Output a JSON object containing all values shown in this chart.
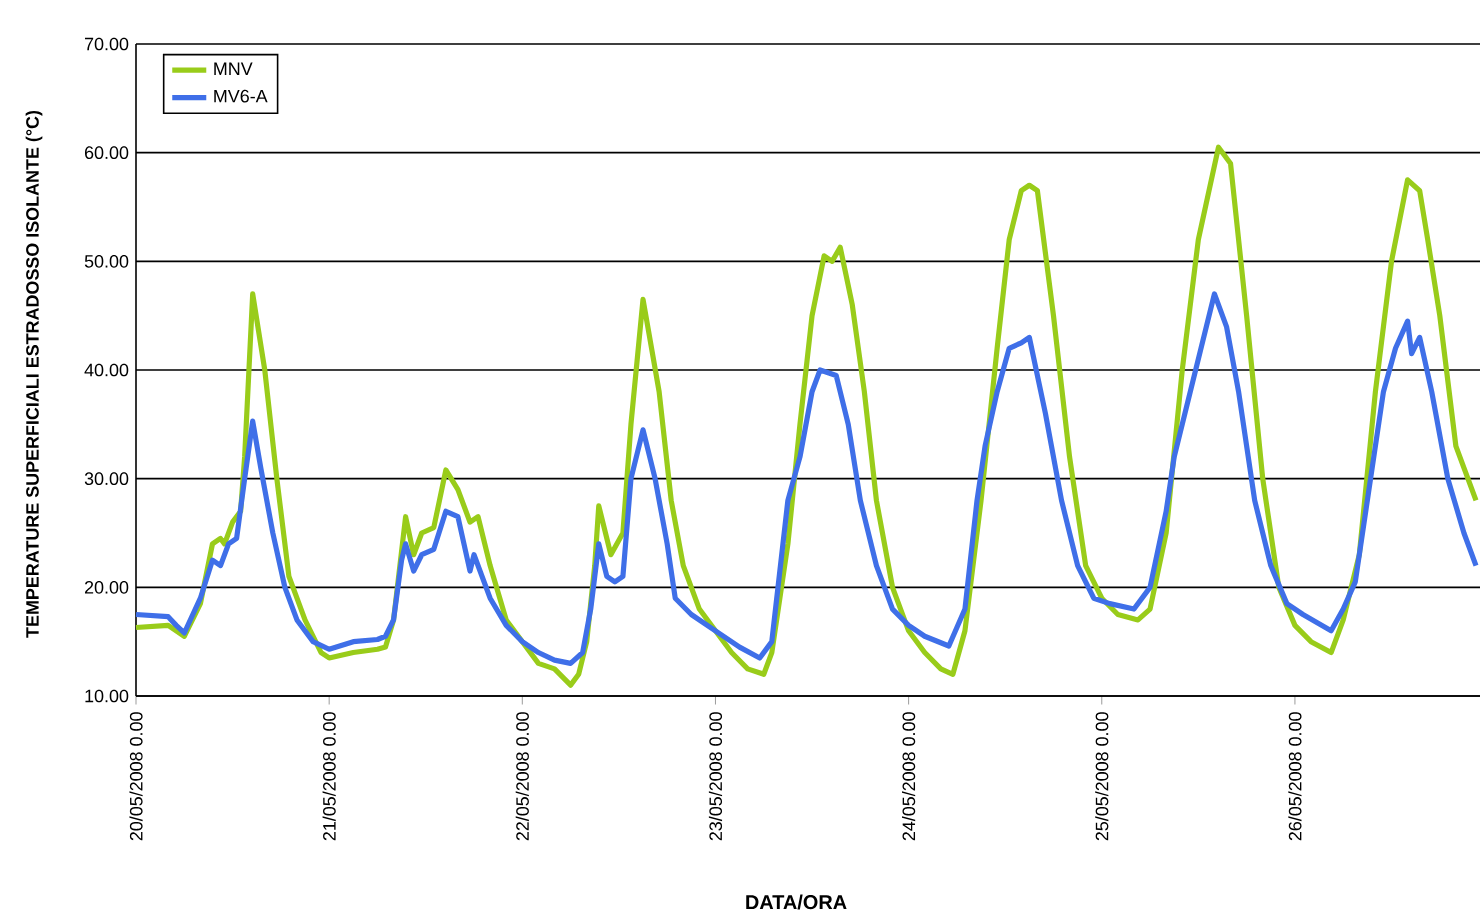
{
  "chart_data": {
    "type": "line",
    "xlabel": "DATA/ORA",
    "ylabel": "TEMPERATURE SUPERFICIALI ESTRADOSSO ISOLANTE (°C)",
    "xlim": [
      "2008-05-20T00:00",
      "2008-05-26T23:00"
    ],
    "xticks": [
      {
        "value": "2008-05-20T00:00",
        "label": "20/05/2008 0.00"
      },
      {
        "value": "2008-05-21T00:00",
        "label": "21/05/2008 0.00"
      },
      {
        "value": "2008-05-22T00:00",
        "label": "22/05/2008 0.00"
      },
      {
        "value": "2008-05-23T00:00",
        "label": "23/05/2008 0.00"
      },
      {
        "value": "2008-05-24T00:00",
        "label": "24/05/2008 0.00"
      },
      {
        "value": "2008-05-25T00:00",
        "label": "25/05/2008 0.00"
      },
      {
        "value": "2008-05-26T00:00",
        "label": "26/05/2008 0.00"
      }
    ],
    "ylim": [
      10,
      70
    ],
    "yticks": [
      {
        "value": 10,
        "label": "10.00"
      },
      {
        "value": 20,
        "label": "20.00"
      },
      {
        "value": 30,
        "label": "30.00"
      },
      {
        "value": 40,
        "label": "40.00"
      },
      {
        "value": 50,
        "label": "50.00"
      },
      {
        "value": 60,
        "label": "60.00"
      },
      {
        "value": 70,
        "label": "70.00"
      }
    ],
    "grid": "y",
    "legend": "top left",
    "marker": "none",
    "line_style": "solid",
    "series": [
      {
        "name": "MNV",
        "color": "#99cc1a",
        "x": [
          "2008-05-20T00:00",
          "2008-05-20T04:00",
          "2008-05-20T05:00",
          "2008-05-20T06:00",
          "2008-05-20T08:00",
          "2008-05-20T09:30",
          "2008-05-20T10:30",
          "2008-05-20T11:00",
          "2008-05-20T12:00",
          "2008-05-20T13:00",
          "2008-05-20T13:30",
          "2008-05-20T14:30",
          "2008-05-20T16:00",
          "2008-05-20T17:30",
          "2008-05-20T19:00",
          "2008-05-20T21:00",
          "2008-05-20T23:00",
          "2008-05-21T00:00",
          "2008-05-21T03:00",
          "2008-05-21T06:00",
          "2008-05-21T07:00",
          "2008-05-21T08:00",
          "2008-05-21T09:30",
          "2008-05-21T10:30",
          "2008-05-21T11:30",
          "2008-05-21T13:00",
          "2008-05-21T14:30",
          "2008-05-21T16:00",
          "2008-05-21T17:30",
          "2008-05-21T18:30",
          "2008-05-21T20:00",
          "2008-05-21T22:00",
          "2008-05-22T00:00",
          "2008-05-22T02:00",
          "2008-05-22T04:00",
          "2008-05-22T06:00",
          "2008-05-22T07:00",
          "2008-05-22T08:00",
          "2008-05-22T09:00",
          "2008-05-22T09:30",
          "2008-05-22T11:00",
          "2008-05-22T12:30",
          "2008-05-22T13:30",
          "2008-05-22T15:00",
          "2008-05-22T17:00",
          "2008-05-22T18:30",
          "2008-05-22T20:00",
          "2008-05-22T22:00",
          "2008-05-23T00:00",
          "2008-05-23T02:00",
          "2008-05-23T04:00",
          "2008-05-23T06:00",
          "2008-05-23T07:00",
          "2008-05-23T09:00",
          "2008-05-23T10:30",
          "2008-05-23T12:00",
          "2008-05-23T13:30",
          "2008-05-23T14:30",
          "2008-05-23T15:30",
          "2008-05-23T17:00",
          "2008-05-23T18:30",
          "2008-05-23T20:00",
          "2008-05-23T22:00",
          "2008-05-24T00:00",
          "2008-05-24T02:00",
          "2008-05-24T04:00",
          "2008-05-24T05:30",
          "2008-05-24T07:00",
          "2008-05-24T09:00",
          "2008-05-24T11:00",
          "2008-05-24T12:30",
          "2008-05-24T14:00",
          "2008-05-24T15:00",
          "2008-05-24T16:00",
          "2008-05-24T18:00",
          "2008-05-24T20:00",
          "2008-05-24T22:00",
          "2008-05-25T00:00",
          "2008-05-25T02:00",
          "2008-05-25T04:30",
          "2008-05-25T06:00",
          "2008-05-25T08:00",
          "2008-05-25T10:00",
          "2008-05-25T12:00",
          "2008-05-25T14:30",
          "2008-05-25T16:00",
          "2008-05-25T18:00",
          "2008-05-25T20:00",
          "2008-05-25T22:00",
          "2008-05-26T00:00",
          "2008-05-26T02:00",
          "2008-05-26T04:30",
          "2008-05-26T06:00",
          "2008-05-26T08:00",
          "2008-05-26T10:00",
          "2008-05-26T12:00",
          "2008-05-26T14:00",
          "2008-05-26T15:30",
          "2008-05-26T16:30",
          "2008-05-26T18:00",
          "2008-05-26T20:00",
          "2008-05-26T22:30"
        ],
        "values": [
          16.3,
          16.5,
          16.0,
          15.5,
          18.5,
          24.0,
          24.5,
          24,
          26,
          27,
          32,
          47,
          40,
          30,
          21,
          17,
          14,
          13.5,
          14,
          14.3,
          14.5,
          17,
          26.5,
          23,
          25,
          25.5,
          30.8,
          29,
          26,
          26.5,
          22,
          17,
          15,
          13,
          12.5,
          11,
          12,
          15,
          22,
          27.5,
          23,
          25,
          35,
          46.5,
          38,
          28,
          22,
          18,
          16,
          14,
          12.5,
          12,
          14,
          24,
          35,
          45,
          50.5,
          50,
          51.3,
          46,
          38,
          28,
          20,
          16,
          14,
          12.5,
          12,
          16,
          28,
          42,
          52,
          56.5,
          57,
          56.5,
          45,
          32,
          22,
          19,
          17.5,
          17,
          18,
          25,
          40,
          52,
          60.5,
          59,
          45,
          30,
          20,
          16.5,
          15,
          14,
          17,
          23,
          38,
          50,
          57.5,
          56.5,
          52,
          45,
          33,
          28
        ]
      },
      {
        "name": "MV6-A",
        "color": "#3f6fe8",
        "x": [
          "2008-05-20T00:00",
          "2008-05-20T04:00",
          "2008-05-20T05:00",
          "2008-05-20T06:00",
          "2008-05-20T08:00",
          "2008-05-20T09:30",
          "2008-05-20T10:30",
          "2008-05-20T11:30",
          "2008-05-20T12:30",
          "2008-05-20T13:30",
          "2008-05-20T14:30",
          "2008-05-20T15:30",
          "2008-05-20T17:00",
          "2008-05-20T18:30",
          "2008-05-20T20:00",
          "2008-05-20T22:00",
          "2008-05-21T00:00",
          "2008-05-21T03:00",
          "2008-05-21T06:00",
          "2008-05-21T07:00",
          "2008-05-21T08:00",
          "2008-05-21T09:00",
          "2008-05-21T09:30",
          "2008-05-21T10:30",
          "2008-05-21T11:30",
          "2008-05-21T13:00",
          "2008-05-21T14:30",
          "2008-05-21T16:00",
          "2008-05-21T17:30",
          "2008-05-21T18:00",
          "2008-05-21T20:00",
          "2008-05-21T22:00",
          "2008-05-22T00:00",
          "2008-05-22T02:00",
          "2008-05-22T04:00",
          "2008-05-22T06:00",
          "2008-05-22T07:30",
          "2008-05-22T08:30",
          "2008-05-22T09:30",
          "2008-05-22T10:30",
          "2008-05-22T11:30",
          "2008-05-22T12:30",
          "2008-05-22T13:30",
          "2008-05-22T15:00",
          "2008-05-22T16:30",
          "2008-05-22T18:00",
          "2008-05-22T19:00",
          "2008-05-22T21:00",
          "2008-05-23T00:00",
          "2008-05-23T03:00",
          "2008-05-23T05:30",
          "2008-05-23T07:00",
          "2008-05-23T09:00",
          "2008-05-23T10:30",
          "2008-05-23T12:00",
          "2008-05-23T13:00",
          "2008-05-23T15:00",
          "2008-05-23T16:30",
          "2008-05-23T18:00",
          "2008-05-23T20:00",
          "2008-05-23T22:00",
          "2008-05-24T00:00",
          "2008-05-24T02:00",
          "2008-05-24T05:00",
          "2008-05-24T07:00",
          "2008-05-24T08:30",
          "2008-05-24T09:30",
          "2008-05-24T11:00",
          "2008-05-24T12:30",
          "2008-05-24T14:00",
          "2008-05-24T15:00",
          "2008-05-24T17:00",
          "2008-05-24T19:00",
          "2008-05-24T21:00",
          "2008-05-24T23:00",
          "2008-05-25T01:00",
          "2008-05-25T04:00",
          "2008-05-25T06:00",
          "2008-05-25T08:00",
          "2008-05-25T09:00",
          "2008-05-25T11:00",
          "2008-05-25T13:00",
          "2008-05-25T14:00",
          "2008-05-25T15:30",
          "2008-05-25T17:00",
          "2008-05-25T19:00",
          "2008-05-25T21:00",
          "2008-05-25T23:00",
          "2008-05-26T01:00",
          "2008-05-26T04:30",
          "2008-05-26T06:00",
          "2008-05-26T07:30",
          "2008-05-26T09:00",
          "2008-05-26T11:00",
          "2008-05-26T12:30",
          "2008-05-26T14:00",
          "2008-05-26T14:30",
          "2008-05-26T15:30",
          "2008-05-26T17:00",
          "2008-05-26T19:00",
          "2008-05-26T21:00",
          "2008-05-26T22:30"
        ],
        "values": [
          17.5,
          17.3,
          16.5,
          15.8,
          19,
          22.5,
          22,
          24,
          24.5,
          30,
          35.3,
          31,
          25,
          20,
          17,
          15,
          14.3,
          15,
          15.2,
          15.5,
          17,
          22.5,
          24,
          21.5,
          23,
          23.5,
          27,
          26.5,
          21.5,
          23,
          19,
          16.5,
          15,
          14,
          13.3,
          13,
          14,
          18,
          24,
          21,
          20.5,
          21,
          30,
          34.5,
          30,
          24,
          19,
          17.5,
          16,
          14.5,
          13.5,
          15,
          28,
          32,
          38,
          40,
          39.5,
          35,
          28,
          22,
          18,
          16.5,
          15.5,
          14.6,
          18,
          28,
          33,
          38,
          42,
          42.5,
          43,
          36,
          28,
          22,
          19,
          18.5,
          18,
          20,
          27,
          32,
          38,
          44,
          47,
          44,
          38,
          28,
          22,
          18.5,
          17.5,
          16,
          18,
          20.5,
          28,
          38,
          42,
          44.5,
          41.5,
          43,
          38,
          30,
          25,
          22
        ]
      }
    ]
  }
}
